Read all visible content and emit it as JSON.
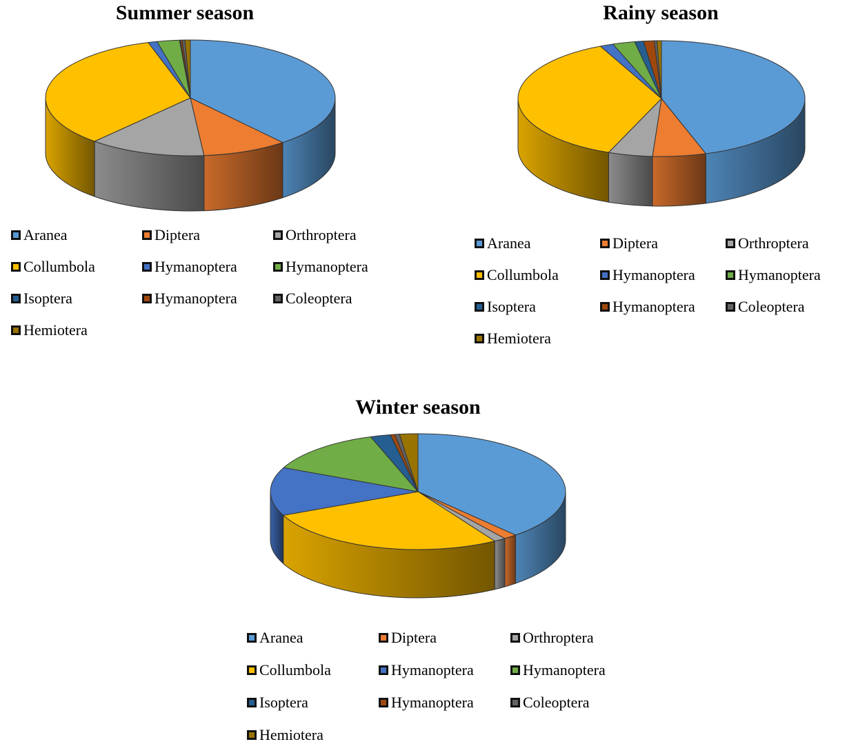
{
  "colors": {
    "Aranea": "#5b9bd5",
    "Diptera": "#ed7d31",
    "Orthroptera": "#a5a5a5",
    "Collumbola": "#ffc000",
    "Hymanoptera_blue": "#4472c4",
    "Hymanoptera_green": "#70ad47",
    "Isoptera": "#255e91",
    "Hymanoptera_brown": "#9e480e",
    "Coleoptera": "#636363",
    "Hemiotera": "#997300"
  },
  "legend_labels": [
    "Aranea",
    "Diptera",
    "Orthroptera",
    "Collumbola",
    "Hymanoptera",
    "Hymanoptera",
    "Isoptera",
    "Hymanoptera",
    "Coleoptera",
    "Hemiotera"
  ],
  "legend_color_keys": [
    "Aranea",
    "Diptera",
    "Orthroptera",
    "Collumbola",
    "Hymanoptera_blue",
    "Hymanoptera_green",
    "Isoptera",
    "Hymanoptera_brown",
    "Coleoptera",
    "Hemiotera"
  ],
  "chart_data": [
    {
      "type": "pie",
      "title": "Summer season",
      "categories": [
        "Aranea",
        "Diptera",
        "Orthroptera",
        "Collumbola",
        "Hymanoptera",
        "Hymanoptera",
        "Isoptera",
        "Hymanoptera",
        "Coleoptera",
        "Hemiotera"
      ],
      "values": [
        39.0,
        9.5,
        13.0,
        33.8,
        1.0,
        2.5,
        0.1,
        0.2,
        0.3,
        0.6
      ],
      "legend_position": "bottom",
      "style": "3d"
    },
    {
      "type": "pie",
      "title": "Rainy season",
      "categories": [
        "Aranea",
        "Diptera",
        "Orthroptera",
        "Collumbola",
        "Hymanoptera",
        "Hymanoptera",
        "Isoptera",
        "Hymanoptera",
        "Coleoptera",
        "Hemiotera"
      ],
      "values": [
        45.0,
        6.0,
        5.0,
        37.0,
        1.5,
        2.5,
        1.0,
        1.2,
        0.3,
        0.5
      ],
      "legend_position": "bottom",
      "style": "3d"
    },
    {
      "type": "pie",
      "title": "Winter season",
      "categories": [
        "Aranea",
        "Diptera",
        "Orthroptera",
        "Collumbola",
        "Hymanoptera",
        "Hymanoptera",
        "Isoptera",
        "Hymanoptera",
        "Coleoptera",
        "Hemiotera"
      ],
      "values": [
        38.5,
        1.5,
        1.3,
        27.0,
        13.5,
        13.0,
        2.2,
        0.5,
        0.5,
        2.0
      ],
      "legend_position": "bottom",
      "style": "3d"
    }
  ]
}
